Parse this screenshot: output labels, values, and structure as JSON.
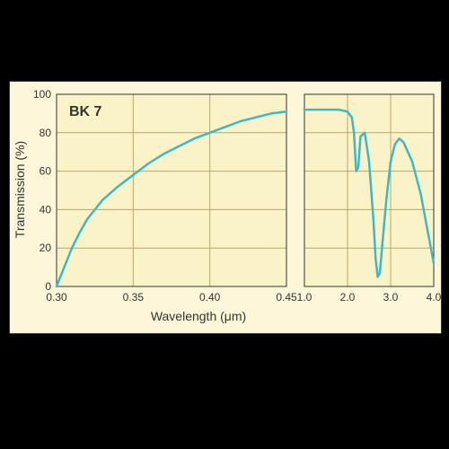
{
  "chart": {
    "type": "line",
    "background_color": "#fdf6d8",
    "plot_background_color": "#fbf3c8",
    "grid_color": "#b8a56e",
    "line_color": "#3db8c4",
    "line_width": 2.5,
    "border_color": "#333333",
    "xlabel": "Wavelength (μm)",
    "ylabel": "Transmission (%)",
    "label_fontsize": 14,
    "tick_fontsize": 12,
    "legend_text": "BK 7",
    "legend_fontsize": 16,
    "ylim": [
      0,
      100
    ],
    "yticks": [
      0,
      20,
      40,
      60,
      80,
      100
    ],
    "panel_left": {
      "xlim": [
        0.3,
        0.45
      ],
      "xticks": [
        0.3,
        0.35,
        0.4,
        0.45
      ],
      "xtick_labels": [
        "0.30",
        "0.35",
        "0.40",
        "0.45"
      ],
      "data": [
        [
          0.3,
          0
        ],
        [
          0.305,
          10
        ],
        [
          0.31,
          20
        ],
        [
          0.315,
          28
        ],
        [
          0.32,
          35
        ],
        [
          0.325,
          40
        ],
        [
          0.33,
          45
        ],
        [
          0.34,
          52
        ],
        [
          0.35,
          58
        ],
        [
          0.36,
          64
        ],
        [
          0.37,
          69
        ],
        [
          0.38,
          73
        ],
        [
          0.39,
          77
        ],
        [
          0.4,
          80
        ],
        [
          0.41,
          83
        ],
        [
          0.42,
          86
        ],
        [
          0.43,
          88
        ],
        [
          0.44,
          90
        ],
        [
          0.45,
          91
        ]
      ]
    },
    "panel_right": {
      "xlim": [
        1.0,
        4.0
      ],
      "xticks": [
        1.0,
        2.0,
        3.0,
        4.0
      ],
      "xtick_labels": [
        "1.0",
        "2.0",
        "3.0",
        "4.0"
      ],
      "data": [
        [
          1.0,
          92
        ],
        [
          1.5,
          92
        ],
        [
          1.8,
          92
        ],
        [
          2.0,
          91
        ],
        [
          2.1,
          88
        ],
        [
          2.15,
          80
        ],
        [
          2.2,
          60
        ],
        [
          2.25,
          62
        ],
        [
          2.3,
          78
        ],
        [
          2.4,
          80
        ],
        [
          2.5,
          65
        ],
        [
          2.6,
          35
        ],
        [
          2.65,
          15
        ],
        [
          2.7,
          5
        ],
        [
          2.75,
          7
        ],
        [
          2.8,
          20
        ],
        [
          2.9,
          45
        ],
        [
          3.0,
          65
        ],
        [
          3.1,
          74
        ],
        [
          3.2,
          77
        ],
        [
          3.3,
          75
        ],
        [
          3.5,
          65
        ],
        [
          3.7,
          48
        ],
        [
          3.85,
          30
        ],
        [
          4.0,
          12
        ]
      ]
    }
  }
}
